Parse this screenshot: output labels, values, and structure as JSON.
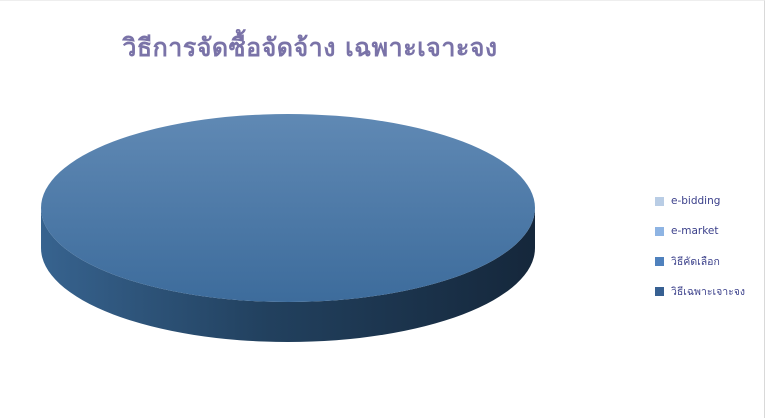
{
  "chart_data": {
    "type": "pie",
    "title": "วิธีการจัดซื้อจัดจ้าง  เฉพาะเจาะจง",
    "categories": [
      "e-bidding",
      "e-market",
      "วิธีคัดเลือก",
      "วิธีเฉพาะเจาะจง"
    ],
    "values": [
      0,
      0,
      0,
      100
    ],
    "colors": [
      "#b9cde5",
      "#8eb4e3",
      "#4f81bd",
      "#376092"
    ],
    "legend_position": "right",
    "style": "3d"
  }
}
